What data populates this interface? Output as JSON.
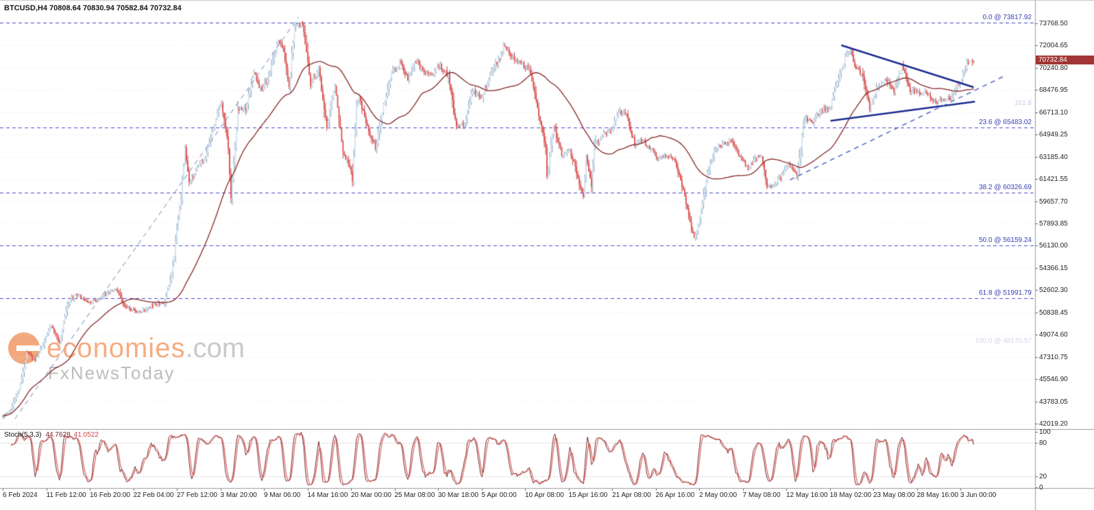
{
  "header": {
    "symbol_line": "BTCUSD,H4 70808.64 70830.94 70582.84 70732.84"
  },
  "watermark": {
    "brand_main": "economies",
    "brand_suffix": ".com",
    "brand_sub": "FxNewsToday",
    "logo": "e-logo-orange-circle"
  },
  "price_axis": {
    "labels": [
      "73768.50",
      "72004.65",
      "70240.80",
      "68476.95",
      "66713.10",
      "64949.25",
      "63185.40",
      "61421.55",
      "59657.70",
      "57893.85",
      "56130.00",
      "54366.15",
      "52602.30",
      "50838.45",
      "49074.60",
      "47310.75",
      "45546.90",
      "43783.05",
      "42019.20"
    ],
    "current_price": "70732.84",
    "current_price_bg": "#a23535"
  },
  "time_axis": {
    "labels": [
      "6 Feb 2024",
      "11 Feb 12:00",
      "16 Feb 20:00",
      "22 Feb 04:00",
      "27 Feb 12:00",
      "3 Mar 20:00",
      "9 Mar 06:00",
      "14 Mar 16:00",
      "20 Mar 00:00",
      "25 Mar 08:00",
      "30 Mar 18:00",
      "5 Apr 00:00",
      "10 Apr 08:00",
      "15 Apr 16:00",
      "21 Apr 08:00",
      "26 Apr 16:00",
      "2 May 00:00",
      "7 May 08:00",
      "12 May 16:00",
      "18 May 02:00",
      "23 May 08:00",
      "28 May 16:00",
      "3 Jun 00:00"
    ]
  },
  "indicator_panel": {
    "title": "Stoch(5,3,3)",
    "value_main": "44.7628",
    "value_signal": "41.0522",
    "scale_labels": [
      "100",
      "80",
      "20",
      "0"
    ],
    "levels": [
      80,
      20
    ]
  },
  "chart_data": {
    "type": "candlestick",
    "symbol": "BTCUSD",
    "timeframe": "H4",
    "title": "BTCUSD H4 candlestick chart with moving average, fibonacci retracement, triangle trendlines and Stochastic(5,3,3) oscillator",
    "visible_range": "6 Feb 2024 - 5 Jun 2024",
    "ohlc_current": {
      "open": 70808.64,
      "high": 70830.94,
      "low": 70582.84,
      "close": 70732.84
    },
    "y_axis": {
      "top_value": 73768.5,
      "bottom_value": 42019.2,
      "label_step": 1763.85
    },
    "x_axis": {
      "bars": 720,
      "bars_per_label": 32
    },
    "grid": "dotted-horizontal",
    "legend_position": "none",
    "price_path": [
      [
        0,
        42600
      ],
      [
        6,
        43100
      ],
      [
        12,
        44700
      ],
      [
        18,
        47600
      ],
      [
        24,
        47100
      ],
      [
        30,
        48300
      ],
      [
        36,
        49900
      ],
      [
        42,
        48400
      ],
      [
        48,
        51500
      ],
      [
        54,
        52300
      ],
      [
        60,
        51900
      ],
      [
        66,
        51600
      ],
      [
        72,
        52000
      ],
      [
        78,
        52400
      ],
      [
        84,
        52800
      ],
      [
        90,
        51400
      ],
      [
        96,
        51000
      ],
      [
        102,
        50800
      ],
      [
        108,
        51300
      ],
      [
        114,
        51500
      ],
      [
        120,
        51700
      ],
      [
        126,
        54500
      ],
      [
        132,
        60000
      ],
      [
        135,
        63800
      ],
      [
        138,
        61000
      ],
      [
        144,
        62400
      ],
      [
        150,
        63200
      ],
      [
        156,
        65500
      ],
      [
        162,
        67500
      ],
      [
        167,
        64000
      ],
      [
        169,
        59800
      ],
      [
        174,
        66800
      ],
      [
        180,
        67000
      ],
      [
        186,
        69900
      ],
      [
        192,
        68300
      ],
      [
        198,
        70000
      ],
      [
        204,
        72300
      ],
      [
        208,
        71600
      ],
      [
        212,
        68900
      ],
      [
        216,
        73600
      ],
      [
        222,
        73750
      ],
      [
        228,
        69000
      ],
      [
        234,
        70100
      ],
      [
        240,
        65600
      ],
      [
        246,
        68900
      ],
      [
        252,
        63500
      ],
      [
        258,
        62200
      ],
      [
        259,
        61100
      ],
      [
        262,
        67300
      ],
      [
        264,
        67800
      ],
      [
        270,
        65600
      ],
      [
        276,
        63900
      ],
      [
        282,
        67200
      ],
      [
        288,
        69800
      ],
      [
        294,
        70600
      ],
      [
        300,
        69400
      ],
      [
        306,
        70800
      ],
      [
        312,
        69900
      ],
      [
        318,
        69800
      ],
      [
        324,
        70400
      ],
      [
        330,
        69600
      ],
      [
        336,
        65400
      ],
      [
        342,
        65800
      ],
      [
        348,
        68500
      ],
      [
        354,
        67800
      ],
      [
        360,
        69300
      ],
      [
        366,
        70700
      ],
      [
        372,
        72000
      ],
      [
        378,
        71000
      ],
      [
        384,
        70600
      ],
      [
        390,
        70000
      ],
      [
        396,
        67100
      ],
      [
        402,
        63900
      ],
      [
        403,
        61500
      ],
      [
        408,
        65600
      ],
      [
        414,
        63400
      ],
      [
        420,
        63800
      ],
      [
        426,
        61500
      ],
      [
        430,
        59900
      ],
      [
        432,
        63100
      ],
      [
        436,
        60800
      ],
      [
        438,
        64100
      ],
      [
        444,
        64900
      ],
      [
        450,
        65100
      ],
      [
        456,
        66800
      ],
      [
        462,
        66400
      ],
      [
        468,
        64200
      ],
      [
        474,
        64500
      ],
      [
        480,
        63800
      ],
      [
        486,
        63100
      ],
      [
        492,
        63400
      ],
      [
        498,
        62800
      ],
      [
        504,
        60600
      ],
      [
        510,
        57500
      ],
      [
        512,
        56600
      ],
      [
        516,
        58300
      ],
      [
        522,
        61900
      ],
      [
        528,
        63900
      ],
      [
        534,
        64200
      ],
      [
        540,
        64500
      ],
      [
        546,
        63200
      ],
      [
        552,
        62300
      ],
      [
        558,
        63100
      ],
      [
        562,
        63300
      ],
      [
        566,
        60900
      ],
      [
        570,
        60800
      ],
      [
        576,
        61500
      ],
      [
        582,
        62700
      ],
      [
        588,
        61800
      ],
      [
        594,
        66200
      ],
      [
        600,
        66000
      ],
      [
        606,
        67000
      ],
      [
        612,
        67000
      ],
      [
        618,
        69000
      ],
      [
        624,
        71000
      ],
      [
        628,
        71600
      ],
      [
        632,
        70100
      ],
      [
        636,
        69900
      ],
      [
        642,
        67000
      ],
      [
        648,
        68800
      ],
      [
        654,
        69300
      ],
      [
        660,
        68500
      ],
      [
        666,
        70300
      ],
      [
        672,
        68400
      ],
      [
        678,
        68300
      ],
      [
        684,
        68300
      ],
      [
        690,
        67500
      ],
      [
        696,
        67700
      ],
      [
        702,
        67800
      ],
      [
        708,
        69000
      ],
      [
        714,
        70600
      ],
      [
        719,
        70730
      ]
    ],
    "moving_average": {
      "type": "SMA",
      "period": 50,
      "color": "#8b3030"
    },
    "stochastic": {
      "k": 5,
      "d": 3,
      "slowing": 3,
      "current_main": 44.7628,
      "current_signal": 41.0522
    },
    "fib_levels": [
      {
        "label": "0.0 @ 73817.92",
        "value": 73817.92
      },
      {
        "label": "23.6 @ 65483.02",
        "value": 65483.02
      },
      {
        "label": "38.2 @ 60326.69",
        "value": 60326.69
      },
      {
        "label": "50.0 @ 56159.24",
        "value": 56159.24
      },
      {
        "label": "61.8 @ 51991.79",
        "value": 51991.79
      }
    ],
    "faint_labels": [
      {
        "text": "161.8",
        "price": 67027,
        "opacity": 0.45,
        "color": "#8f7fc9"
      },
      {
        "text": "100.0 @ 48170.57",
        "price": 48170.57,
        "opacity": 0.4,
        "color": "#8a97c9"
      }
    ],
    "trendlines": [
      {
        "name": "triangle-upper-resistance",
        "style": "solid",
        "color": "#1b2a8f",
        "width": 2.5,
        "points": [
          [
            621,
            72030
          ],
          [
            719,
            68700
          ]
        ]
      },
      {
        "name": "triangle-lower-support",
        "style": "solid",
        "color": "#1b2a8f",
        "width": 2.5,
        "points": [
          [
            613,
            66030
          ],
          [
            720,
            67560
          ]
        ]
      },
      {
        "name": "ascending-support-dashed",
        "style": "dashed",
        "color": "#5a6fc0",
        "width": 1.6,
        "points": [
          [
            583,
            61350
          ],
          [
            742,
            69600
          ]
        ]
      },
      {
        "name": "longterm-ascending-dashed",
        "style": "dashed",
        "color": "#97a2c9",
        "width": 1.2,
        "points": [
          [
            9,
            42400
          ],
          [
            219,
            74260
          ]
        ]
      }
    ],
    "colors": {
      "bull_fill": "#d6e4f0",
      "bull_border": "#7096b8",
      "bear_fill": "#e04848",
      "bear_border": "#c03030",
      "ma_line": "#8b3030",
      "fib_line": "#4646c8",
      "fib_label": "#3540b5",
      "grid": "#e2e2e2",
      "stoch_main": "#7a2020",
      "stoch_signal": "#d24040",
      "separator": "#9a9a9a",
      "axis_text": "#1f1f1f"
    }
  }
}
